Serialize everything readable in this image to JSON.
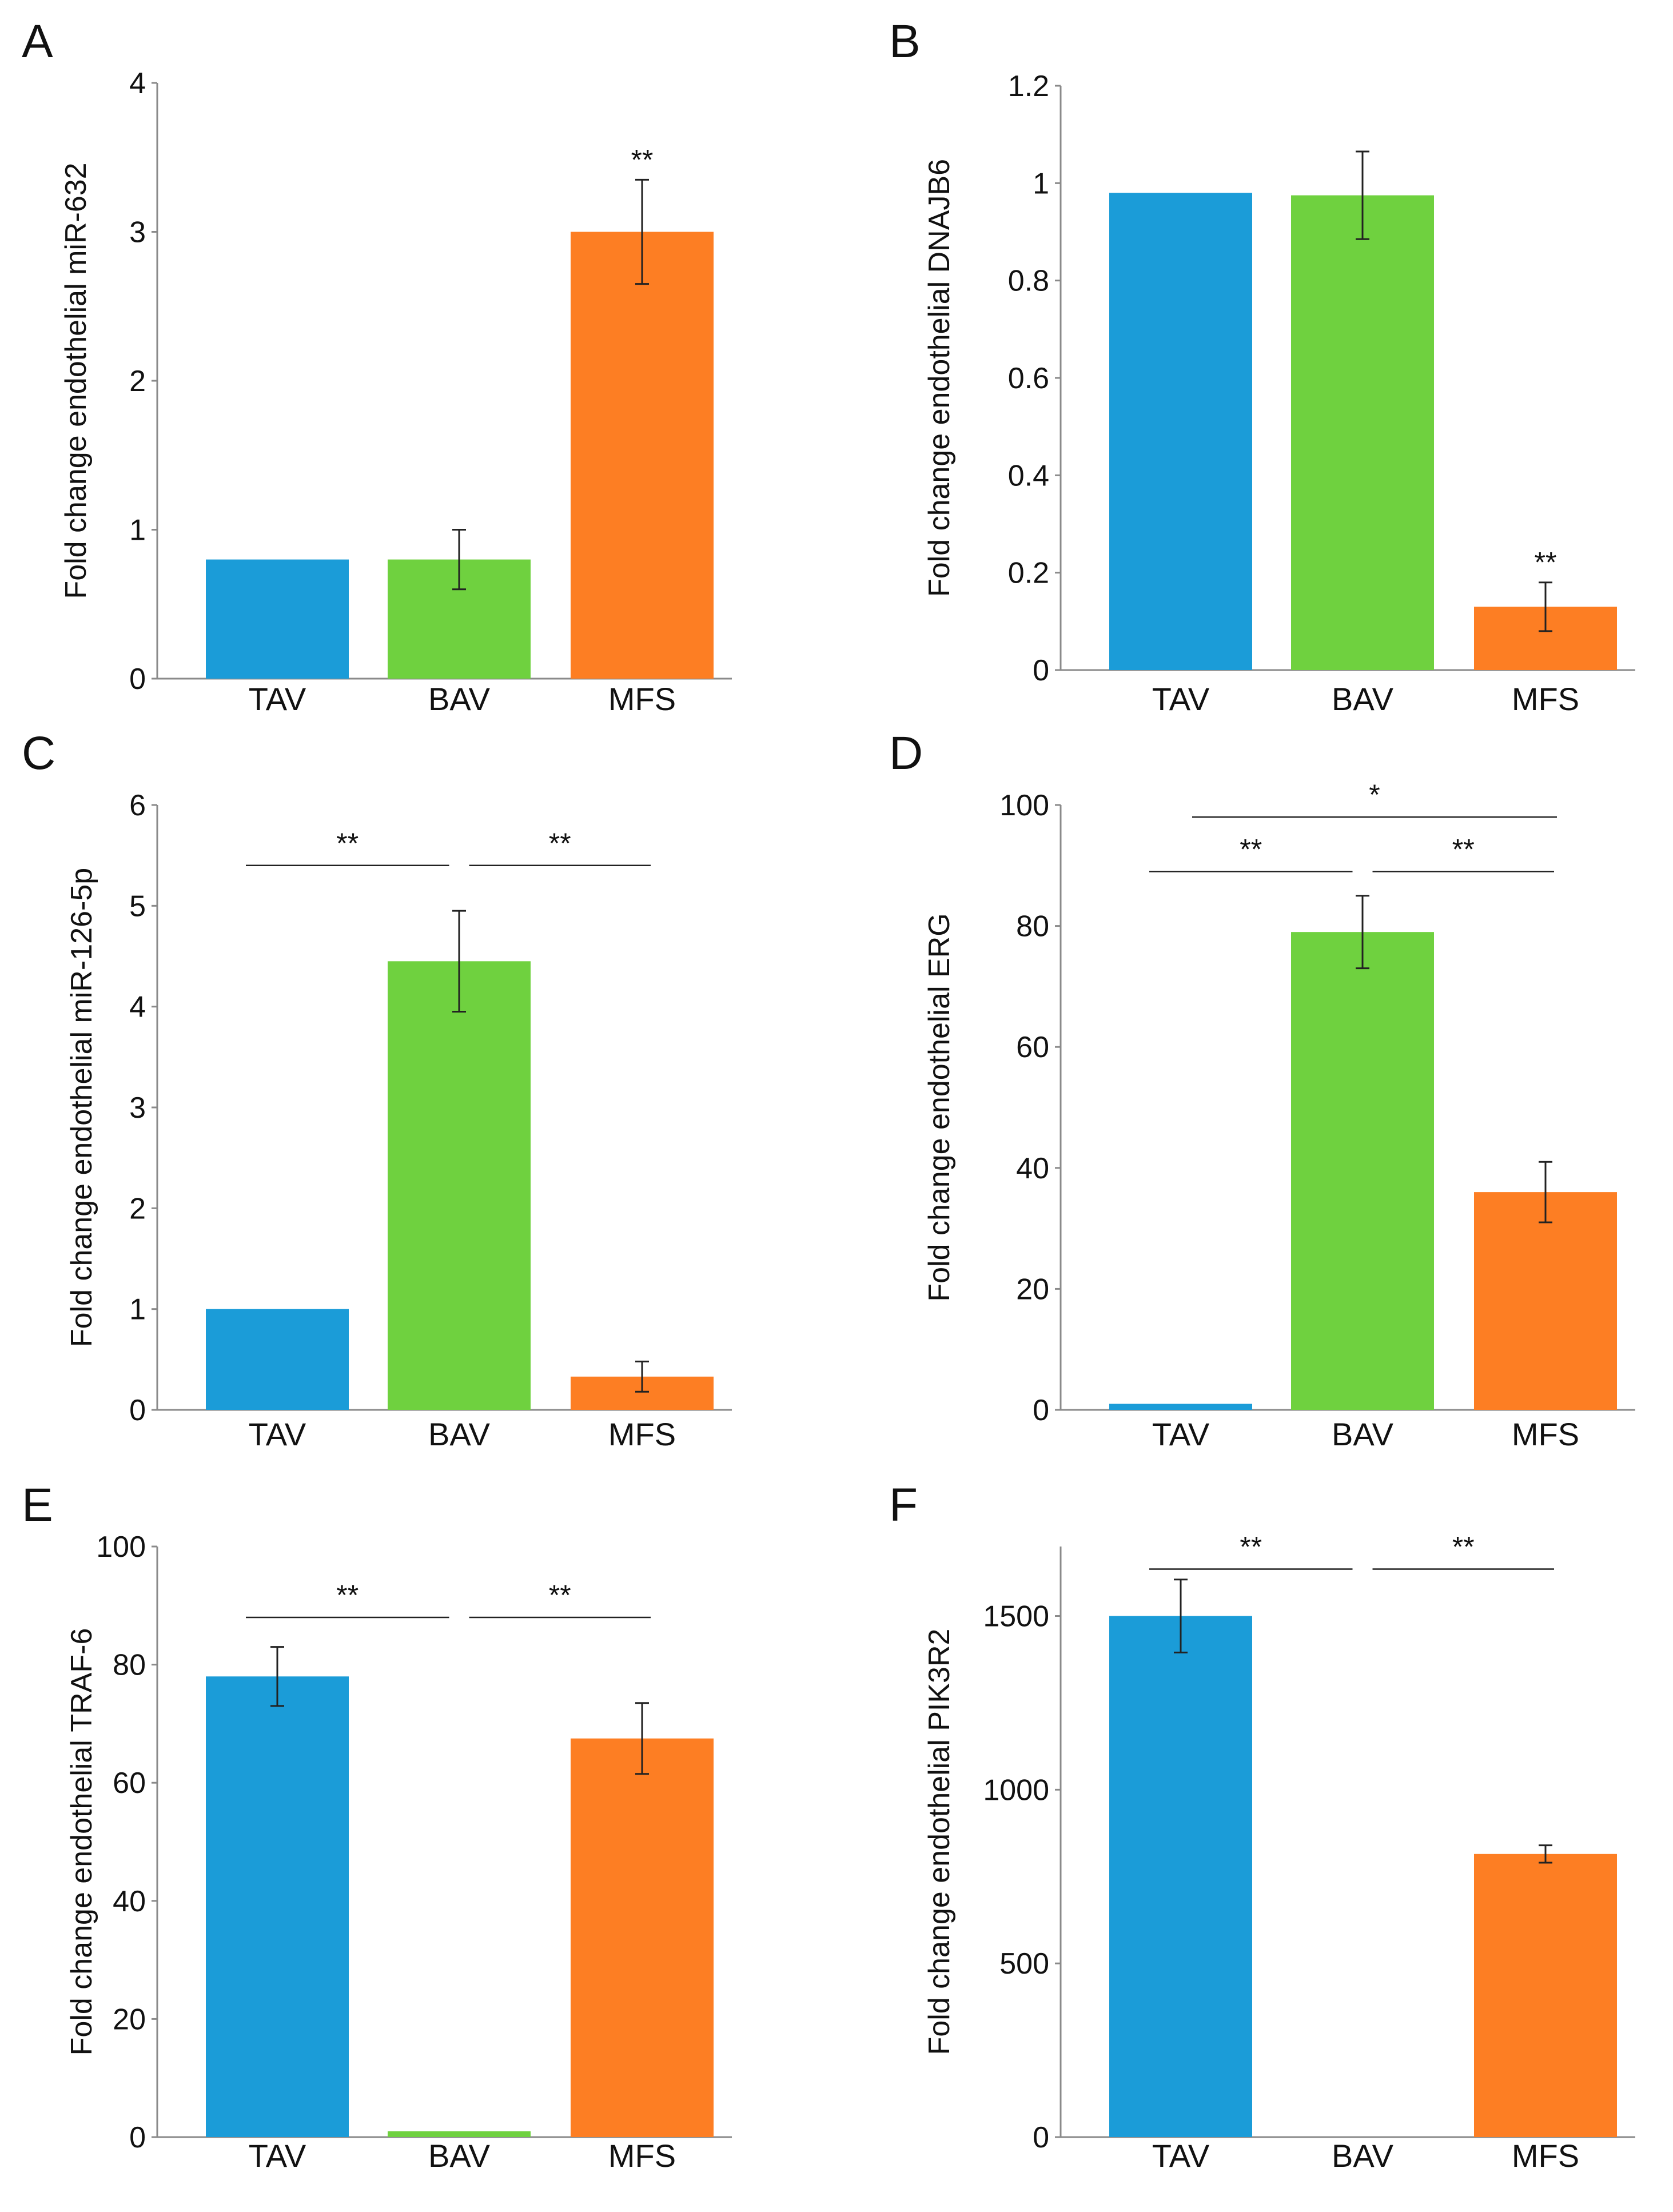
{
  "chart_data": [
    {
      "panel": "A",
      "type": "bar",
      "categories": [
        "TAV",
        "BAV",
        "MFS"
      ],
      "values": [
        0.8,
        0.8,
        3.0
      ],
      "errors": [
        null,
        0.2,
        0.35
      ],
      "ylabel": "Fold change endothelial miR-632",
      "ylim": [
        0,
        4
      ],
      "yticks": [
        0,
        1,
        2,
        3,
        4
      ],
      "ytick_labels": [
        "0",
        "1",
        "2",
        "3",
        "4"
      ],
      "colors": [
        "#1b9cd8",
        "#6fd13f",
        "#fd7e23"
      ],
      "significance": [
        {
          "bar": 2,
          "label": "**"
        }
      ],
      "brackets": []
    },
    {
      "panel": "B",
      "type": "bar",
      "categories": [
        "TAV",
        "BAV",
        "MFS"
      ],
      "values": [
        0.98,
        0.975,
        0.13
      ],
      "errors": [
        null,
        0.09,
        0.05
      ],
      "ylabel": "Fold change endothelial DNAJB6",
      "ylim": [
        0,
        1.2
      ],
      "yticks": [
        0,
        0.2,
        0.4,
        0.6,
        0.8,
        1,
        1.2
      ],
      "ytick_labels": [
        "0",
        "0.2",
        "0.4",
        "0.6",
        "0.8",
        "1",
        "1.2"
      ],
      "colors": [
        "#1b9cd8",
        "#6fd13f",
        "#fd7e23"
      ],
      "significance": [
        {
          "bar": 2,
          "label": "**"
        }
      ],
      "brackets": []
    },
    {
      "panel": "C",
      "type": "bar",
      "categories": [
        "TAV",
        "BAV",
        "MFS"
      ],
      "values": [
        1.0,
        4.45,
        0.33
      ],
      "errors": [
        null,
        0.5,
        0.15
      ],
      "ylabel": "Fold change endothelial miR-126-5p",
      "ylim": [
        0,
        6
      ],
      "yticks": [
        0,
        1,
        2,
        3,
        4,
        5,
        6
      ],
      "ytick_labels": [
        "0",
        "1",
        "2",
        "3",
        "4",
        "5",
        "6"
      ],
      "colors": [
        "#1b9cd8",
        "#6fd13f",
        "#fd7e23"
      ],
      "significance": [],
      "brackets": [
        {
          "from": 0,
          "to": 1,
          "level": 5.4,
          "label": "**"
        },
        {
          "from": 1,
          "to": 2,
          "level": 5.4,
          "label": "**"
        }
      ]
    },
    {
      "panel": "D",
      "type": "bar",
      "categories": [
        "TAV",
        "BAV",
        "MFS"
      ],
      "values": [
        1.0,
        79.0,
        36.0
      ],
      "errors": [
        null,
        6.0,
        5.0
      ],
      "ylabel": "Fold change endothelial ERG",
      "ylim": [
        0,
        100
      ],
      "yticks": [
        0,
        20,
        40,
        60,
        80,
        100
      ],
      "ytick_labels": [
        "0",
        "20",
        "40",
        "60",
        "80",
        "100"
      ],
      "colors": [
        "#1b9cd8",
        "#6fd13f",
        "#fd7e23"
      ],
      "significance": [],
      "brackets": [
        {
          "from": 0,
          "to": 2,
          "level": 98.0,
          "label": "*"
        },
        {
          "from": 0,
          "to": 1,
          "level": 89.0,
          "label": "**"
        },
        {
          "from": 1,
          "to": 2,
          "level": 89.0,
          "label": "**"
        }
      ]
    },
    {
      "panel": "E",
      "type": "bar",
      "categories": [
        "TAV",
        "BAV",
        "MFS"
      ],
      "values": [
        78.0,
        1.0,
        67.5
      ],
      "errors": [
        5.0,
        null,
        6.0
      ],
      "ylabel": "Fold change endothelial TRAF-6",
      "ylim": [
        0,
        100
      ],
      "yticks": [
        0,
        20,
        40,
        60,
        80,
        100
      ],
      "ytick_labels": [
        "0",
        "20",
        "40",
        "60",
        "80",
        "100"
      ],
      "colors": [
        "#1b9cd8",
        "#6fd13f",
        "#fd7e23"
      ],
      "significance": [],
      "brackets": [
        {
          "from": 0,
          "to": 1,
          "level": 88.0,
          "label": "**"
        },
        {
          "from": 1,
          "to": 2,
          "level": 88.0,
          "label": "**"
        }
      ]
    },
    {
      "panel": "F",
      "type": "bar",
      "categories": [
        "TAV",
        "BAV",
        "MFS"
      ],
      "values": [
        1500,
        0,
        815
      ],
      "errors": [
        105,
        null,
        25
      ],
      "ylabel": "Fold change endothelial PIK3R2",
      "ylim": [
        0,
        1700
      ],
      "yticks": [
        0,
        500,
        1000,
        1500
      ],
      "ytick_labels": [
        "0",
        "500",
        "1000",
        "1500"
      ],
      "colors": [
        "#1b9cd8",
        "#6fd13f",
        "#fd7e23"
      ],
      "significance": [],
      "brackets": [
        {
          "from": 0,
          "to": 1,
          "level": 1635,
          "label": "**"
        },
        {
          "from": 1,
          "to": 2,
          "level": 1635,
          "label": "**"
        }
      ]
    }
  ]
}
